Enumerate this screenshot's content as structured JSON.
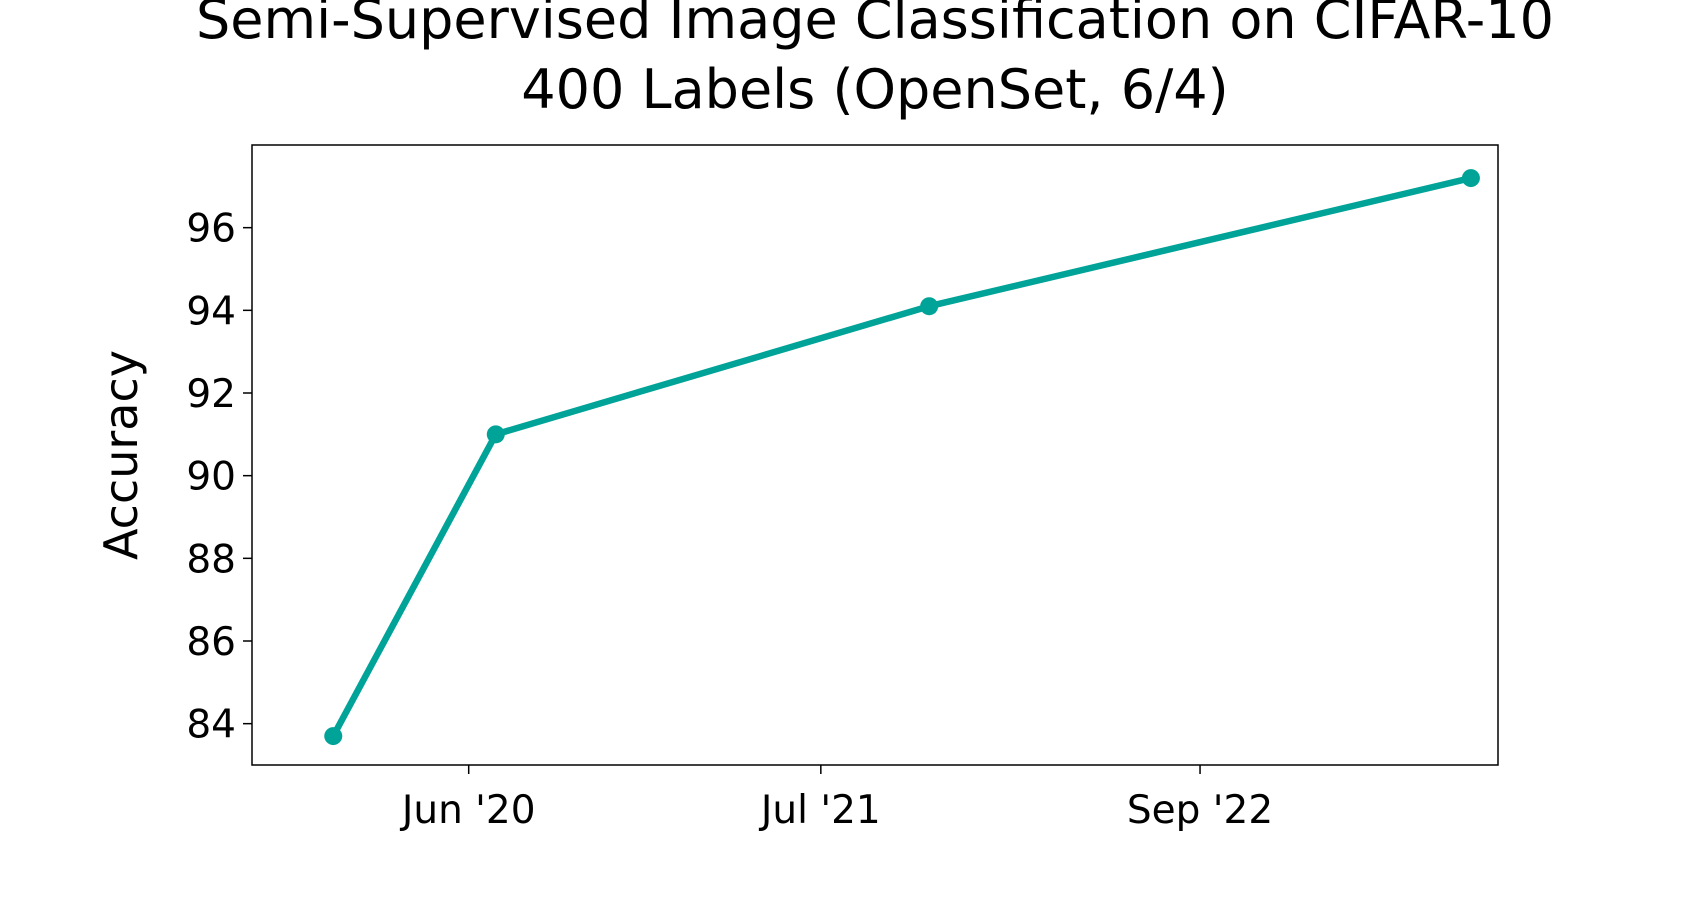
{
  "chart_data": {
    "type": "line",
    "title": "Semi-Supervised Image Classification on CIFAR-10",
    "subtitle": "400 Labels (OpenSet, 6/4)",
    "y_label": "Accuracy",
    "x": [
      "2020-01",
      "2020-07",
      "2021-11",
      "2023-07"
    ],
    "series": [
      {
        "name": "Accuracy",
        "color": "#00a398",
        "values": [
          83.7,
          91.0,
          94.1,
          97.2
        ]
      }
    ],
    "xlim": [
      "2019-10",
      "2023-08"
    ],
    "xticks": [
      {
        "value": "2020-06",
        "label": "Jun '20"
      },
      {
        "value": "2021-07",
        "label": "Jul '21"
      },
      {
        "value": "2022-09",
        "label": "Sep '22"
      }
    ],
    "ylim": [
      83,
      98
    ],
    "yticks": [
      84,
      86,
      88,
      90,
      92,
      94,
      96
    ],
    "grid": false
  }
}
